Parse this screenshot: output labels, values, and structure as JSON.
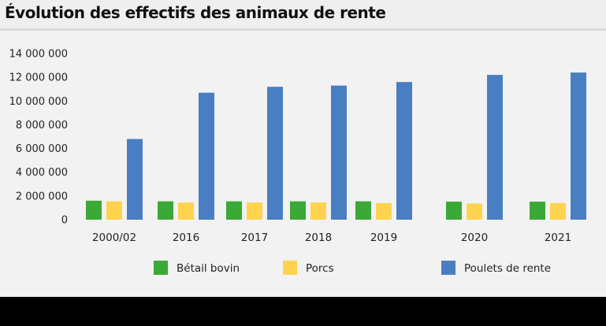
{
  "title": "Évolution des effectifs des animaux de rente",
  "colors": {
    "Bétail bovin": "#3aa935",
    "Porcs": "#ffd34e",
    "Poulets de rente": "#4a7ec2"
  },
  "chart_data": {
    "type": "bar",
    "title": "Évolution des effectifs des animaux de rente",
    "xlabel": "",
    "ylabel": "",
    "ylim": [
      0,
      14000000
    ],
    "yticks": [
      0,
      2000000,
      4000000,
      6000000,
      8000000,
      10000000,
      12000000,
      14000000
    ],
    "ytick_labels": [
      "0",
      "2 000 000",
      "4 000 000",
      "6 000 000",
      "8 000 000",
      "10 000 000",
      "12 000 000",
      "14 000 000"
    ],
    "grid": false,
    "legend": "bottom",
    "categories": [
      "2000/02",
      "2016",
      "2017",
      "2018",
      "2019",
      "2020",
      "2021"
    ],
    "series": [
      {
        "name": "Bétail bovin",
        "values": [
          1600000,
          1550000,
          1550000,
          1550000,
          1550000,
          1520000,
          1520000
        ]
      },
      {
        "name": "Porcs",
        "values": [
          1550000,
          1450000,
          1450000,
          1450000,
          1400000,
          1360000,
          1400000
        ]
      },
      {
        "name": "Poulets de rente",
        "values": [
          6800000,
          10700000,
          11200000,
          11300000,
          11600000,
          12200000,
          12400000
        ]
      }
    ]
  }
}
